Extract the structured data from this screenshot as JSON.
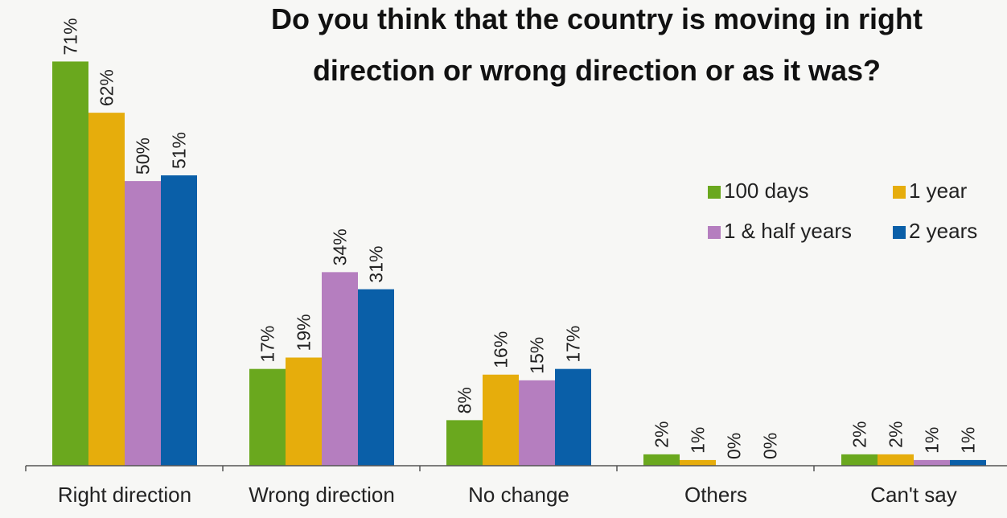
{
  "chart_data": {
    "type": "bar",
    "title_lines": [
      "Do you think that the country is moving in right",
      "direction or wrong direction or as it was?"
    ],
    "categories": [
      "Right direction",
      "Wrong direction",
      "No change",
      "Others",
      "Can't say"
    ],
    "series": [
      {
        "name": "100 days",
        "color": "#6aa81e",
        "values": [
          71,
          17,
          8,
          2,
          2
        ]
      },
      {
        "name": "1 year",
        "color": "#e6ad0c",
        "values": [
          62,
          19,
          16,
          1,
          2
        ]
      },
      {
        "name": "1 & half years",
        "color": "#b57ebf",
        "values": [
          50,
          34,
          15,
          0,
          1
        ]
      },
      {
        "name": "2 years",
        "color": "#0a5fa8",
        "values": [
          51,
          31,
          17,
          0,
          1
        ]
      }
    ],
    "value_suffix": "%",
    "ylim": [
      0,
      72
    ],
    "grid": false,
    "legend_position": "right"
  }
}
